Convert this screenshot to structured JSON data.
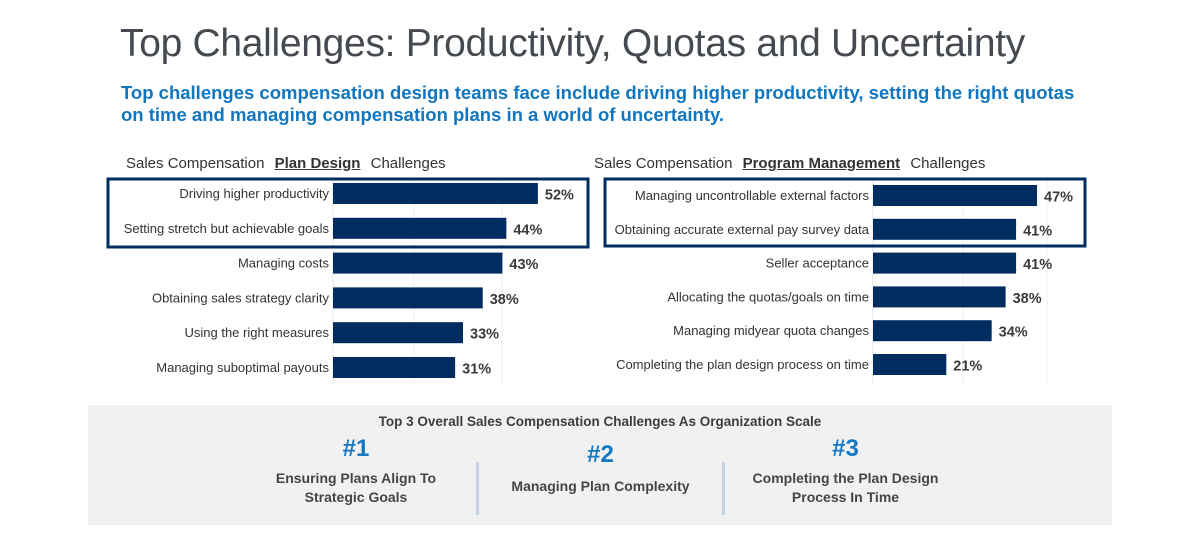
{
  "header": {
    "title": "Top Challenges: Productivity, Quotas and Uncertainty",
    "subtitle": "Top challenges compensation design teams face include driving higher productivity, setting the right quotas on time and managing compensation plans in a world of uncertainty."
  },
  "colors": {
    "bar": "#002c5f",
    "highlight_box": "#002c5f",
    "accent_blue": "#1478c3",
    "panel_bg": "#f1f1f1",
    "divider": "#c2d3e6"
  },
  "chart_data": [
    {
      "type": "bar",
      "orientation": "horizontal",
      "title_prefix": "Sales Compensation",
      "title_emphasis": "Plan Design",
      "title_suffix": "Challenges",
      "categories": [
        "Driving higher productivity",
        "Setting stretch but achievable goals",
        "Managing costs",
        "Obtaining sales strategy clarity",
        "Using the right measures",
        "Managing suboptimal payouts"
      ],
      "values": [
        52,
        44,
        43,
        38,
        33,
        31
      ],
      "value_labels": [
        "52%",
        "44%",
        "43%",
        "38%",
        "33%",
        "31%"
      ],
      "unit": "%",
      "highlighted": [
        0,
        1
      ],
      "xlim": [
        0,
        55
      ],
      "grid": true,
      "gridlines": [
        20,
        40
      ],
      "xlabel": "",
      "ylabel": ""
    },
    {
      "type": "bar",
      "orientation": "horizontal",
      "title_prefix": "Sales Compensation",
      "title_emphasis": "Program Management",
      "title_suffix": "Challenges",
      "categories": [
        "Managing uncontrollable external factors",
        "Obtaining accurate external pay survey data",
        "Seller acceptance",
        "Allocating the quotas/goals on time",
        "Managing midyear quota changes",
        "Completing the plan design process on time"
      ],
      "values": [
        47,
        41,
        41,
        38,
        34,
        21
      ],
      "value_labels": [
        "47%",
        "41%",
        "41%",
        "38%",
        "34%",
        "21%"
      ],
      "unit": "%",
      "highlighted": [
        0,
        1
      ],
      "xlim": [
        0,
        55
      ],
      "grid": true,
      "gridlines": [
        25,
        50
      ],
      "xlabel": "",
      "ylabel": ""
    }
  ],
  "panel": {
    "title": "Top 3 Overall Sales Compensation Challenges As Organization  Scale",
    "ranks": [
      {
        "number": "#1",
        "text_lines": [
          "Ensuring Plans Align To",
          "Strategic Goals"
        ]
      },
      {
        "number": "#2",
        "text_lines": [
          "Managing Plan Complexity"
        ]
      },
      {
        "number": "#3",
        "text_lines": [
          "Completing the Plan Design",
          "Process In Time"
        ]
      }
    ]
  }
}
